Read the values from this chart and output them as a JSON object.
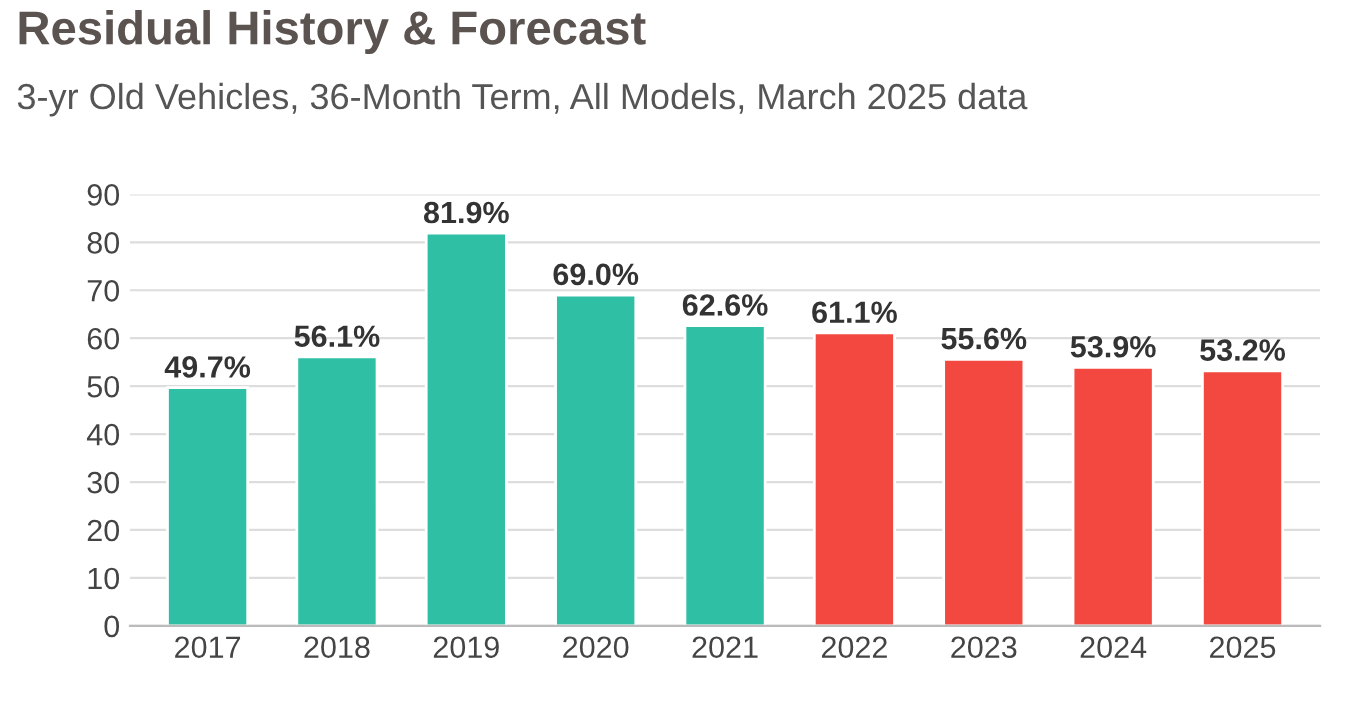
{
  "chart_data": {
    "type": "bar",
    "title": "Residual History & Forecast",
    "subtitle": "3-yr Old Vehicles, 36-Month Term, All Models, March 2025 data",
    "categories": [
      "2017",
      "2018",
      "2019",
      "2020",
      "2021",
      "2022",
      "2023",
      "2024",
      "2025"
    ],
    "values": [
      49.7,
      56.1,
      81.9,
      69.0,
      62.6,
      61.1,
      55.6,
      53.9,
      53.2
    ],
    "value_labels": [
      "49.7%",
      "56.1%",
      "81.9%",
      "69.0%",
      "62.6%",
      "61.1%",
      "55.6%",
      "53.9%",
      "53.2%"
    ],
    "colors": [
      "#2ebfa5",
      "#2ebfa5",
      "#2ebfa5",
      "#2ebfa5",
      "#2ebfa5",
      "#f2483f",
      "#f2483f",
      "#f2483f",
      "#f2483f"
    ],
    "ylim": [
      0,
      90
    ],
    "yticks": [
      0,
      10,
      20,
      30,
      40,
      50,
      60,
      70,
      80,
      90
    ],
    "grid": "y"
  }
}
